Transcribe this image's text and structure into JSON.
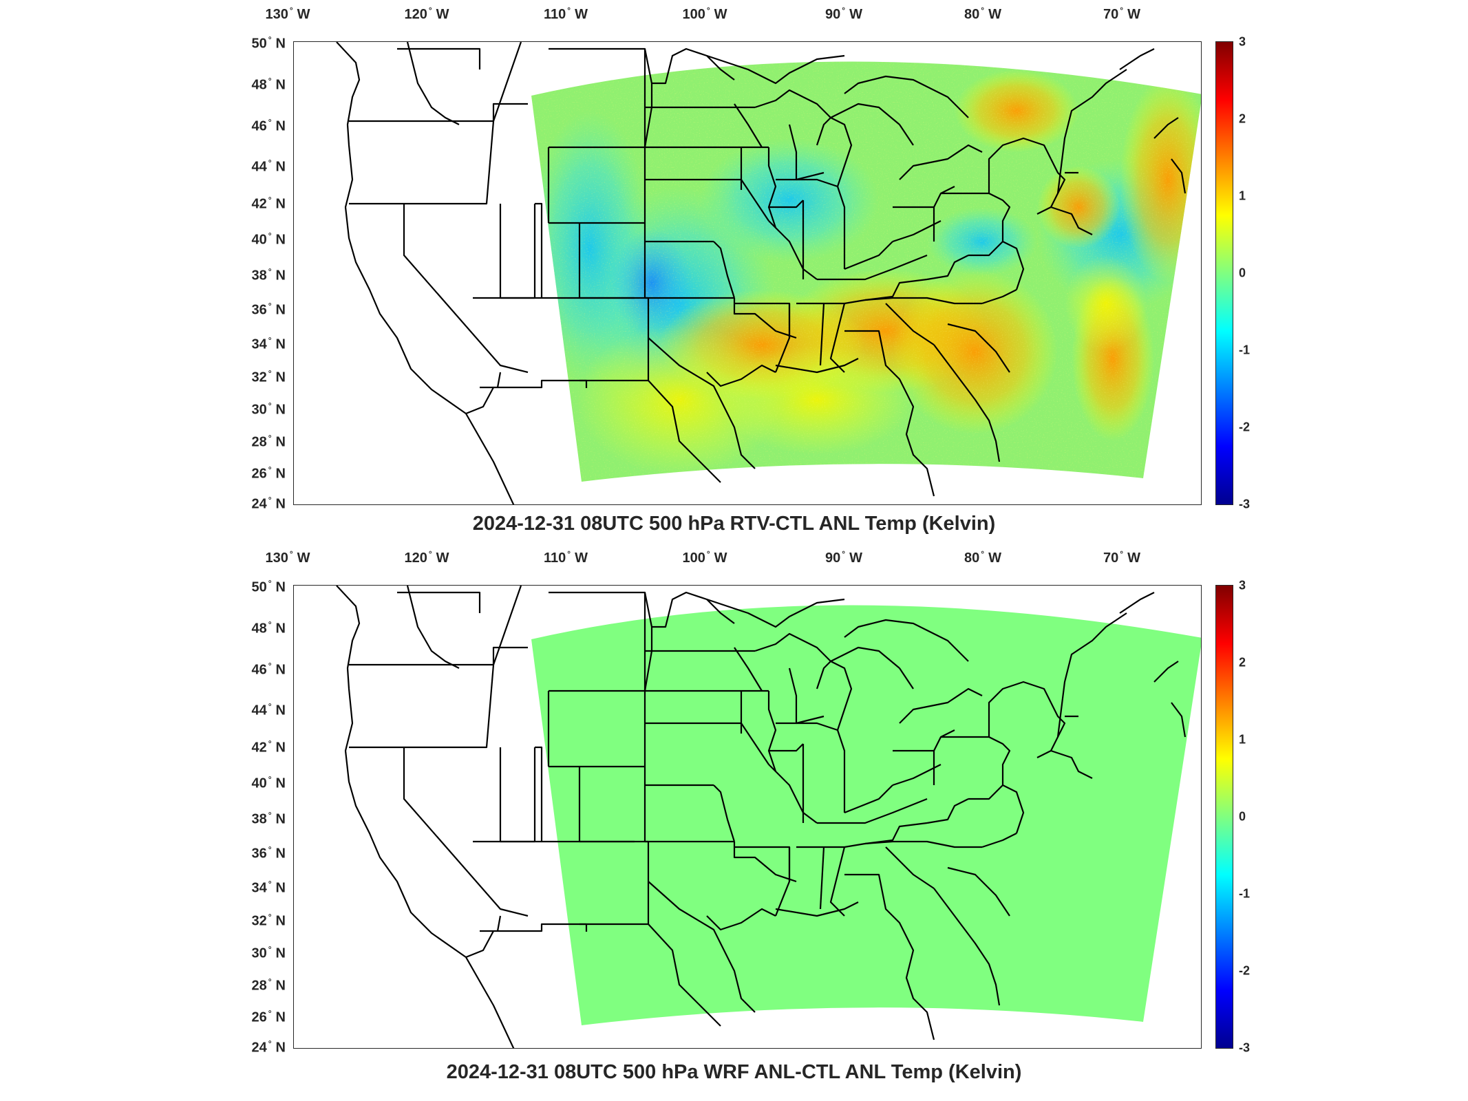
{
  "panels": [
    {
      "title": "2024-12-31 08UTC 500 hPa RTV-CTL ANL Temp (Kelvin)",
      "field_style": "noisy-anomaly"
    },
    {
      "title": "2024-12-31 08UTC 500 hPa WRF ANL-CTL ANL Temp (Kelvin)",
      "field_style": "uniform-zero"
    }
  ],
  "lon_ticks": [
    {
      "value": "130",
      "hemi": "W"
    },
    {
      "value": "120",
      "hemi": "W"
    },
    {
      "value": "110",
      "hemi": "W"
    },
    {
      "value": "100",
      "hemi": "W"
    },
    {
      "value": "90",
      "hemi": "W"
    },
    {
      "value": "80",
      "hemi": "W"
    },
    {
      "value": "70",
      "hemi": "W"
    }
  ],
  "lat_ticks": [
    {
      "value": "50",
      "hemi": "N"
    },
    {
      "value": "48",
      "hemi": "N"
    },
    {
      "value": "46",
      "hemi": "N"
    },
    {
      "value": "44",
      "hemi": "N"
    },
    {
      "value": "42",
      "hemi": "N"
    },
    {
      "value": "40",
      "hemi": "N"
    },
    {
      "value": "38",
      "hemi": "N"
    },
    {
      "value": "36",
      "hemi": "N"
    },
    {
      "value": "34",
      "hemi": "N"
    },
    {
      "value": "32",
      "hemi": "N"
    },
    {
      "value": "30",
      "hemi": "N"
    },
    {
      "value": "28",
      "hemi": "N"
    },
    {
      "value": "26",
      "hemi": "N"
    },
    {
      "value": "24",
      "hemi": "N"
    }
  ],
  "colorbar": {
    "ticks": [
      "3",
      "2",
      "1",
      "0",
      "-1",
      "-2",
      "-3"
    ],
    "range": [
      -3,
      3
    ],
    "colormap": "jet",
    "zero_color": "#80ff80"
  }
}
